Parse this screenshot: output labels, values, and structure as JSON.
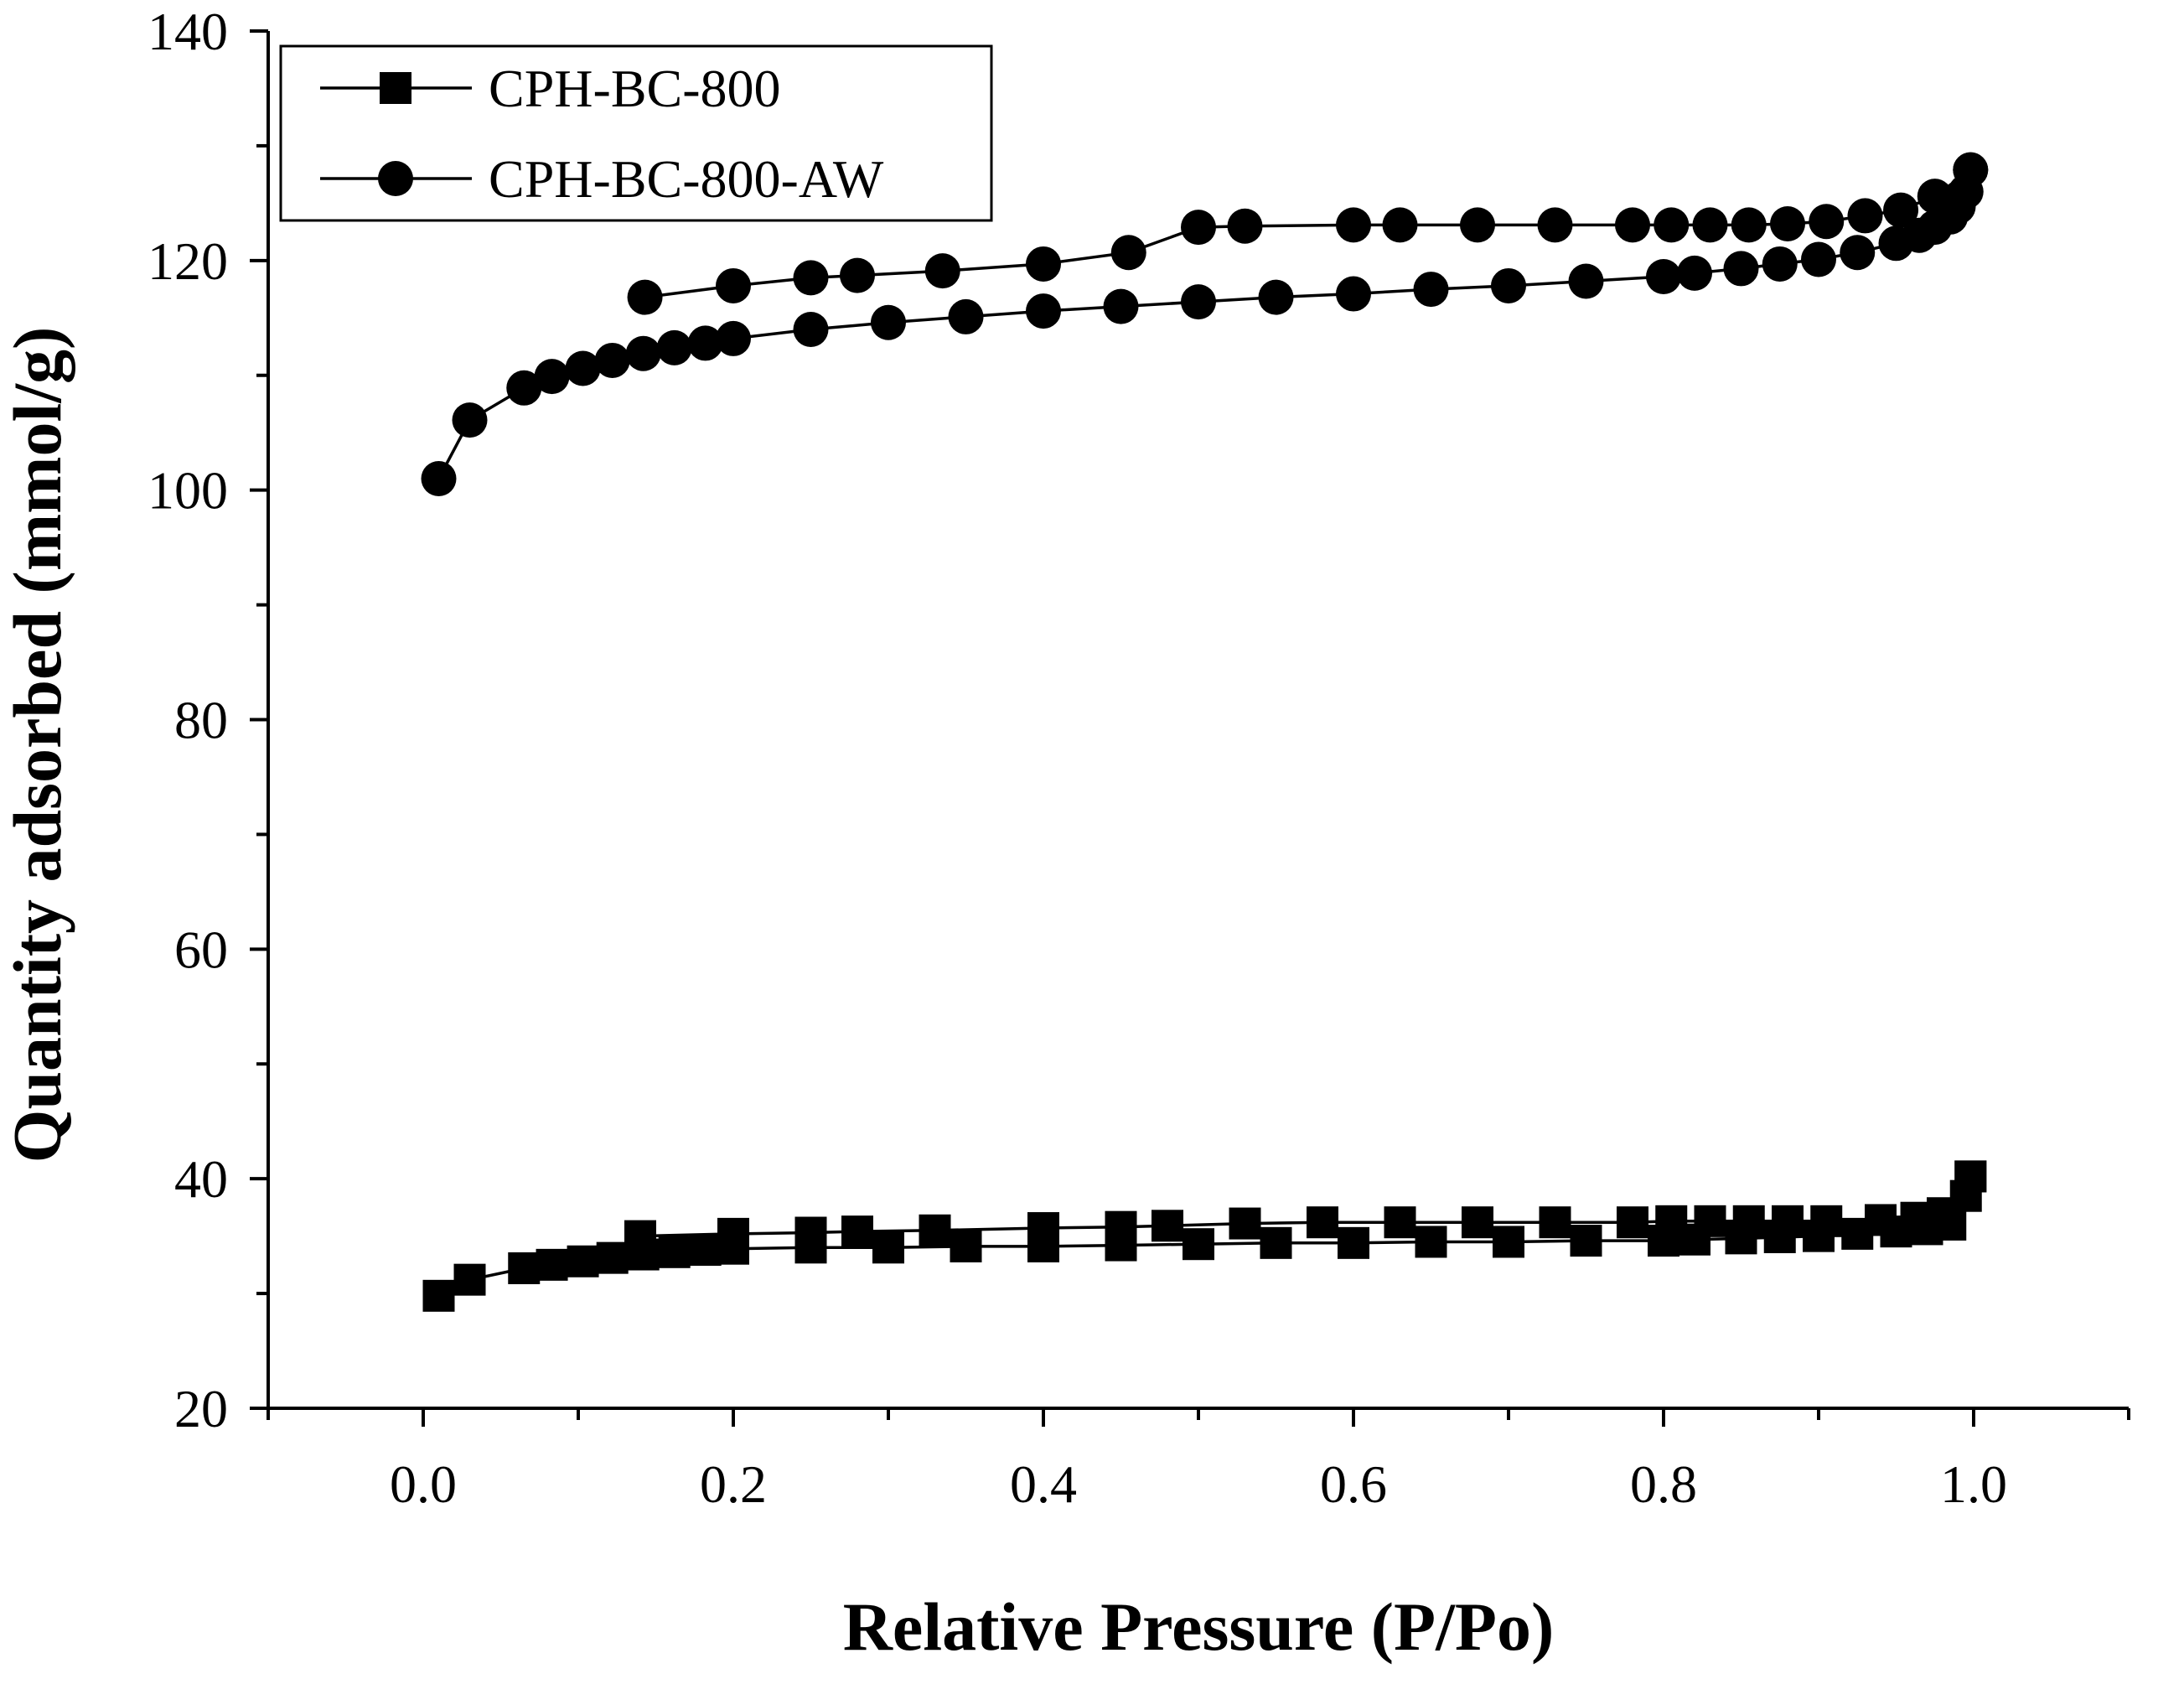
{
  "chart_data": {
    "type": "line",
    "xlabel": "Relative Pressure (P/Po)",
    "ylabel": "Quantity adsorbed (mmol/g)",
    "xlim": [
      -0.1,
      1.1
    ],
    "ylim": [
      20,
      140
    ],
    "xticks": [
      0.0,
      0.2,
      0.4,
      0.6,
      0.8,
      1.0
    ],
    "xtick_labels": [
      "0.0",
      "0.2",
      "0.4",
      "0.6",
      "0.8",
      "1.0"
    ],
    "yticks": [
      20,
      40,
      60,
      80,
      100,
      120,
      140
    ],
    "ytick_labels": [
      "20",
      "40",
      "60",
      "80",
      "100",
      "120",
      "140"
    ],
    "grid": false,
    "legend_position": "top-left",
    "series": [
      {
        "name": "CPH-BC-800",
        "marker": "square",
        "color": "#000000",
        "adsorption": [
          [
            0.01,
            29.8
          ],
          [
            0.03,
            31.2
          ],
          [
            0.065,
            32.2
          ],
          [
            0.083,
            32.5
          ],
          [
            0.103,
            32.8
          ],
          [
            0.122,
            33.1
          ],
          [
            0.142,
            33.4
          ],
          [
            0.162,
            33.6
          ],
          [
            0.182,
            33.8
          ],
          [
            0.2,
            33.9
          ],
          [
            0.25,
            34.0
          ],
          [
            0.3,
            34.0
          ],
          [
            0.35,
            34.1
          ],
          [
            0.4,
            34.1
          ],
          [
            0.45,
            34.2
          ],
          [
            0.5,
            34.3
          ],
          [
            0.55,
            34.4
          ],
          [
            0.6,
            34.4
          ],
          [
            0.65,
            34.5
          ],
          [
            0.7,
            34.5
          ],
          [
            0.75,
            34.6
          ],
          [
            0.8,
            34.6
          ],
          [
            0.82,
            34.7
          ],
          [
            0.85,
            34.8
          ],
          [
            0.875,
            34.9
          ],
          [
            0.9,
            35.0
          ],
          [
            0.925,
            35.2
          ],
          [
            0.95,
            35.4
          ],
          [
            0.97,
            35.6
          ],
          [
            0.985,
            36.0
          ],
          [
            0.995,
            38.5
          ],
          [
            0.998,
            40.2
          ]
        ],
        "desorption": [
          [
            0.998,
            40.2
          ],
          [
            0.98,
            37.0
          ],
          [
            0.963,
            36.6
          ],
          [
            0.94,
            36.4
          ],
          [
            0.905,
            36.3
          ],
          [
            0.88,
            36.3
          ],
          [
            0.855,
            36.3
          ],
          [
            0.83,
            36.3
          ],
          [
            0.805,
            36.3
          ],
          [
            0.78,
            36.2
          ],
          [
            0.73,
            36.2
          ],
          [
            0.68,
            36.2
          ],
          [
            0.63,
            36.2
          ],
          [
            0.58,
            36.2
          ],
          [
            0.53,
            36.1
          ],
          [
            0.48,
            35.9
          ],
          [
            0.45,
            35.8
          ],
          [
            0.4,
            35.7
          ],
          [
            0.33,
            35.5
          ],
          [
            0.28,
            35.4
          ],
          [
            0.25,
            35.3
          ],
          [
            0.2,
            35.2
          ],
          [
            0.14,
            35.0
          ]
        ]
      },
      {
        "name": "CPH-BC-800-AW",
        "marker": "circle",
        "color": "#000000",
        "adsorption": [
          [
            0.01,
            101.0
          ],
          [
            0.03,
            106.1
          ],
          [
            0.065,
            108.9
          ],
          [
            0.083,
            109.9
          ],
          [
            0.103,
            110.6
          ],
          [
            0.122,
            111.3
          ],
          [
            0.142,
            111.9
          ],
          [
            0.162,
            112.4
          ],
          [
            0.182,
            112.8
          ],
          [
            0.2,
            113.2
          ],
          [
            0.25,
            114.0
          ],
          [
            0.3,
            114.6
          ],
          [
            0.35,
            115.1
          ],
          [
            0.4,
            115.6
          ],
          [
            0.45,
            116.0
          ],
          [
            0.5,
            116.4
          ],
          [
            0.55,
            116.8
          ],
          [
            0.6,
            117.1
          ],
          [
            0.65,
            117.5
          ],
          [
            0.7,
            117.8
          ],
          [
            0.75,
            118.2
          ],
          [
            0.8,
            118.6
          ],
          [
            0.82,
            118.9
          ],
          [
            0.85,
            119.3
          ],
          [
            0.875,
            119.7
          ],
          [
            0.9,
            120.1
          ],
          [
            0.925,
            120.7
          ],
          [
            0.95,
            121.5
          ],
          [
            0.965,
            122.2
          ],
          [
            0.975,
            122.9
          ],
          [
            0.985,
            123.8
          ],
          [
            0.99,
            124.7
          ],
          [
            0.995,
            126.0
          ],
          [
            0.998,
            127.9
          ]
        ],
        "desorption": [
          [
            0.998,
            127.9
          ],
          [
            0.975,
            125.6
          ],
          [
            0.953,
            124.4
          ],
          [
            0.93,
            123.9
          ],
          [
            0.905,
            123.4
          ],
          [
            0.88,
            123.2
          ],
          [
            0.855,
            123.1
          ],
          [
            0.83,
            123.1
          ],
          [
            0.805,
            123.1
          ],
          [
            0.78,
            123.1
          ],
          [
            0.73,
            123.1
          ],
          [
            0.68,
            123.1
          ],
          [
            0.63,
            123.1
          ],
          [
            0.6,
            123.1
          ],
          [
            0.53,
            123.0
          ],
          [
            0.5,
            122.9
          ],
          [
            0.455,
            120.7
          ],
          [
            0.4,
            119.7
          ],
          [
            0.335,
            119.1
          ],
          [
            0.28,
            118.7
          ],
          [
            0.25,
            118.5
          ],
          [
            0.2,
            117.8
          ],
          [
            0.143,
            116.8
          ]
        ]
      }
    ]
  }
}
